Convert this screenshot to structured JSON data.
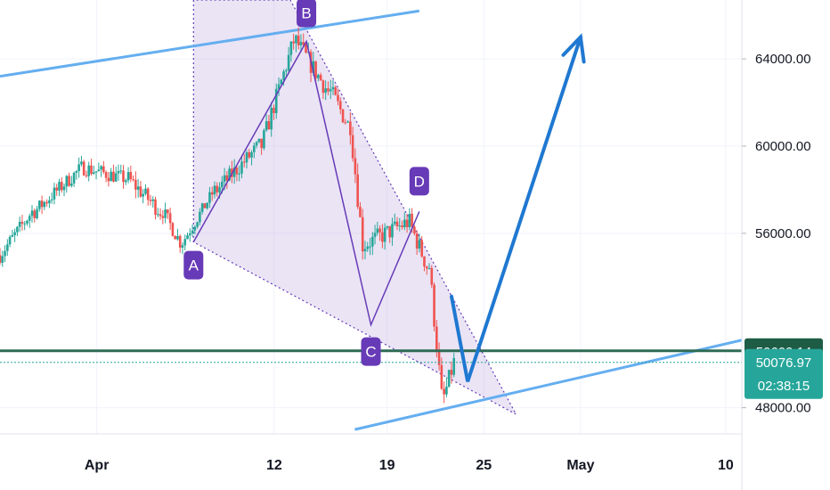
{
  "colors": {
    "background": "#ffffff",
    "grid": "#f0f3fa",
    "up_candle": "#26a69a",
    "down_candle": "#ef5350",
    "channel": "#64aef0",
    "pattern_fill": "#b39ddb",
    "pattern_line": "#673ab7",
    "marker": "#673ab7",
    "projection": "#1f78d1",
    "support_line": "#2e6b55",
    "current_price_line": "#26a69a",
    "badge_dark": "#1e5c46",
    "badge_teal": "#26a69a"
  },
  "chart_data": {
    "type": "candlestick",
    "x_axis": {
      "type": "date",
      "start": "2021-03-26",
      "end": "2021-05-11",
      "ticks": [
        {
          "date": "2021-04-01",
          "label": "Apr"
        },
        {
          "date": "2021-04-12",
          "label": "12"
        },
        {
          "date": "2021-04-19",
          "label": "19"
        },
        {
          "date": "2021-04-25",
          "label": "25"
        },
        {
          "date": "2021-05-01",
          "label": "May"
        },
        {
          "date": "2021-05-10",
          "label": "10"
        }
      ]
    },
    "y_axis": {
      "range": [
        46800,
        66700
      ],
      "ticks": [
        {
          "value": 64000,
          "label": "64000.00"
        },
        {
          "value": 60000,
          "label": "60000.00"
        },
        {
          "value": 56000,
          "label": "56000.00"
        },
        {
          "value": 48000,
          "label": "48000.00"
        }
      ]
    },
    "grid": true,
    "segments": [
      {
        "from": [
          "2021-03-26",
          55000
        ],
        "to": [
          "2021-03-28",
          57000
        ],
        "points": 14,
        "noise": 700
      },
      {
        "from": [
          "2021-03-28",
          57000
        ],
        "to": [
          "2021-04-01",
          59000
        ],
        "points": 20,
        "noise": 700
      },
      {
        "from": [
          "2021-04-01",
          59000
        ],
        "to": [
          "2021-04-04",
          58500
        ],
        "points": 18,
        "noise": 700
      },
      {
        "from": [
          "2021-04-04",
          58500
        ],
        "to": [
          "2021-04-06",
          57000
        ],
        "points": 14,
        "noise": 800
      },
      {
        "from": [
          "2021-04-06",
          57000
        ],
        "to": [
          "2021-04-07",
          55600
        ],
        "points": 8,
        "noise": 700
      },
      {
        "from": [
          "2021-04-07",
          55600
        ],
        "to": [
          "2021-04-09",
          58000
        ],
        "points": 14,
        "noise": 600
      },
      {
        "from": [
          "2021-04-09",
          58000
        ],
        "to": [
          "2021-04-12",
          60000
        ],
        "points": 18,
        "noise": 800
      },
      {
        "from": [
          "2021-04-12",
          60000
        ],
        "to": [
          "2021-04-14",
          64800
        ],
        "points": 14,
        "noise": 900
      },
      {
        "from": [
          "2021-04-14",
          64800
        ],
        "to": [
          "2021-04-16",
          62500
        ],
        "points": 14,
        "noise": 900
      },
      {
        "from": [
          "2021-04-16",
          62500
        ],
        "to": [
          "2021-04-17",
          61000
        ],
        "points": 8,
        "noise": 900
      },
      {
        "from": [
          "2021-04-17",
          61000
        ],
        "to": [
          "2021-04-18",
          55500
        ],
        "points": 6,
        "noise": 1000
      },
      {
        "from": [
          "2021-04-18",
          55500
        ],
        "to": [
          "2021-04-21",
          56500
        ],
        "points": 18,
        "noise": 900
      },
      {
        "from": [
          "2021-04-21",
          56500
        ],
        "to": [
          "2021-04-22",
          54500
        ],
        "points": 8,
        "noise": 900
      },
      {
        "from": [
          "2021-04-22",
          54500
        ],
        "to": [
          "2021-04-23",
          48500
        ],
        "points": 6,
        "noise": 1000
      },
      {
        "from": [
          "2021-04-23",
          48500
        ],
        "to": [
          "2021-04-23",
          50076.97
        ],
        "points": 5,
        "noise": 900
      }
    ],
    "channel_lines": [
      {
        "from": [
          "2021-03-26",
          63200
        ],
        "to": [
          "2021-04-21",
          66200
        ]
      },
      {
        "from": [
          "2021-04-17",
          47000
        ],
        "to": [
          "2021-05-11",
          51100
        ]
      }
    ],
    "harmonic_pattern": {
      "points": [
        {
          "label": "A",
          "date": "2021-04-07",
          "price": 55600
        },
        {
          "label": "B",
          "date": "2021-04-14",
          "price": 64800
        },
        {
          "label": "C",
          "date": "2021-04-18",
          "price": 51800
        },
        {
          "label": "D",
          "date": "2021-04-21",
          "price": 57000
        }
      ],
      "triangle": [
        [
          "2021-04-07",
          66700
        ],
        [
          "2021-04-07",
          55600
        ],
        [
          "2021-04-27",
          47700
        ],
        [
          "2021-04-13",
          66700
        ]
      ]
    },
    "projection_path": [
      [
        "2021-04-23",
        53100
      ],
      [
        "2021-04-24",
        49200
      ],
      [
        "2021-05-01",
        65000
      ]
    ],
    "support_price": 50609.14,
    "current_price": 50076.97,
    "price_badges": [
      {
        "label": "50609.14",
        "style": "dark",
        "price": 50609.14
      },
      {
        "label": "50076.97",
        "style": "teal",
        "price": 50076.97
      },
      {
        "label": "02:38:15",
        "style": "teal",
        "price": 50076.97
      }
    ]
  }
}
